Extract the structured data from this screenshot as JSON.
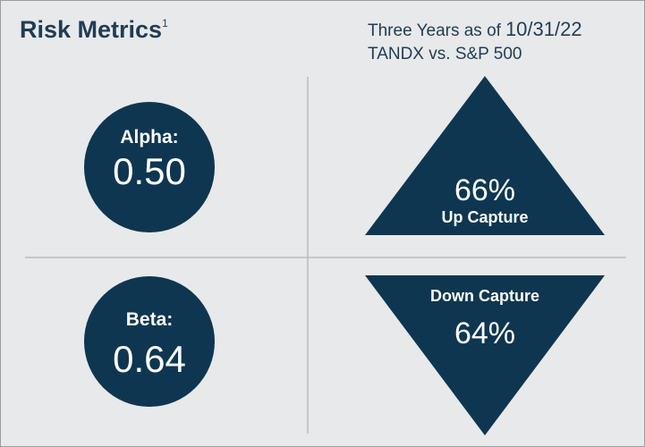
{
  "header": {
    "title": "Risk Metrics",
    "footnote": "1",
    "period_prefix": "Three Years as of",
    "period_date": "10/31/22",
    "comparison": "TANDX vs. S&P 500"
  },
  "metrics": {
    "alpha": {
      "label": "Alpha:",
      "value": "0.50"
    },
    "beta": {
      "label": "Beta:",
      "value": "0.64"
    },
    "up_capture": {
      "label": "Up Capture",
      "value": "66%"
    },
    "down_capture": {
      "label": "Down Capture",
      "value": "64%"
    }
  }
}
